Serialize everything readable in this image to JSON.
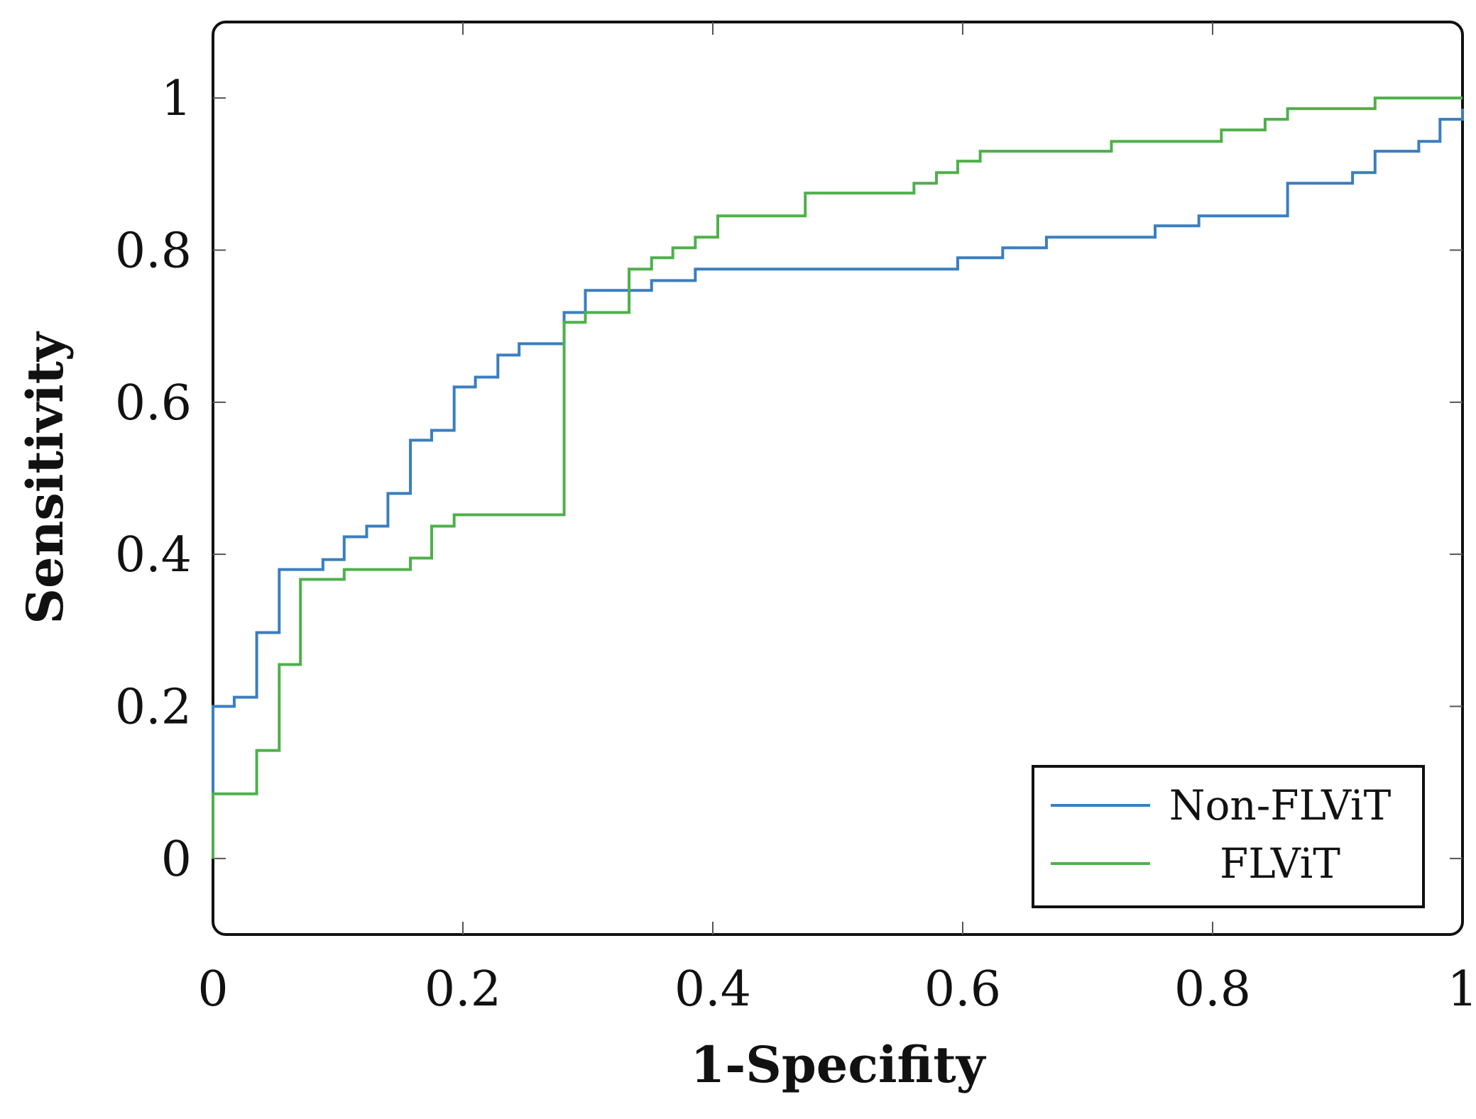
{
  "chart_data": {
    "type": "line",
    "title": "",
    "xlabel": "1-Specifity",
    "ylabel": "Sensitivity",
    "xlim": [
      0,
      1
    ],
    "ylim": [
      -0.1,
      1.1
    ],
    "xticks": [
      0,
      0.2,
      0.4,
      0.6,
      0.8,
      1
    ],
    "xtick_labels": [
      "0",
      "0.2",
      "0.4",
      "0.6",
      "0.8",
      "1"
    ],
    "yticks": [
      0,
      0.2,
      0.4,
      0.6,
      0.8,
      1
    ],
    "ytick_labels": [
      "0",
      "0.2",
      "0.4",
      "0.6",
      "0.8",
      "1"
    ],
    "grid": false,
    "legend_position": "bottom-right",
    "series": [
      {
        "name": "Non-FLViT",
        "color": "#3a7ebf",
        "step": true,
        "x": [
          0,
          0.017,
          0.035,
          0.053,
          0.088,
          0.105,
          0.123,
          0.14,
          0.158,
          0.175,
          0.193,
          0.21,
          0.228,
          0.245,
          0.281,
          0.298,
          0.351,
          0.386,
          0.596,
          0.632,
          0.667,
          0.754,
          0.789,
          0.86,
          0.912,
          0.93,
          0.965,
          0.982,
          1
        ],
        "y": [
          0.2,
          0.212,
          0.297,
          0.38,
          0.393,
          0.423,
          0.437,
          0.48,
          0.55,
          0.563,
          0.62,
          0.633,
          0.662,
          0.677,
          0.718,
          0.747,
          0.76,
          0.775,
          0.79,
          0.803,
          0.817,
          0.832,
          0.845,
          0.888,
          0.902,
          0.93,
          0.943,
          0.972,
          0.986
        ]
      },
      {
        "name": "FLViT",
        "color": "#4fb04b",
        "step": true,
        "x": [
          0,
          0.035,
          0.053,
          0.07,
          0.105,
          0.158,
          0.175,
          0.193,
          0.281,
          0.298,
          0.333,
          0.351,
          0.368,
          0.386,
          0.404,
          0.474,
          0.561,
          0.579,
          0.596,
          0.614,
          0.719,
          0.807,
          0.842,
          0.86,
          0.93,
          1
        ],
        "y": [
          0.085,
          0.142,
          0.255,
          0.367,
          0.38,
          0.395,
          0.437,
          0.452,
          0.705,
          0.718,
          0.775,
          0.79,
          0.803,
          0.817,
          0.845,
          0.875,
          0.888,
          0.902,
          0.917,
          0.93,
          0.943,
          0.958,
          0.972,
          0.986,
          1.0,
          1.0
        ]
      }
    ]
  }
}
